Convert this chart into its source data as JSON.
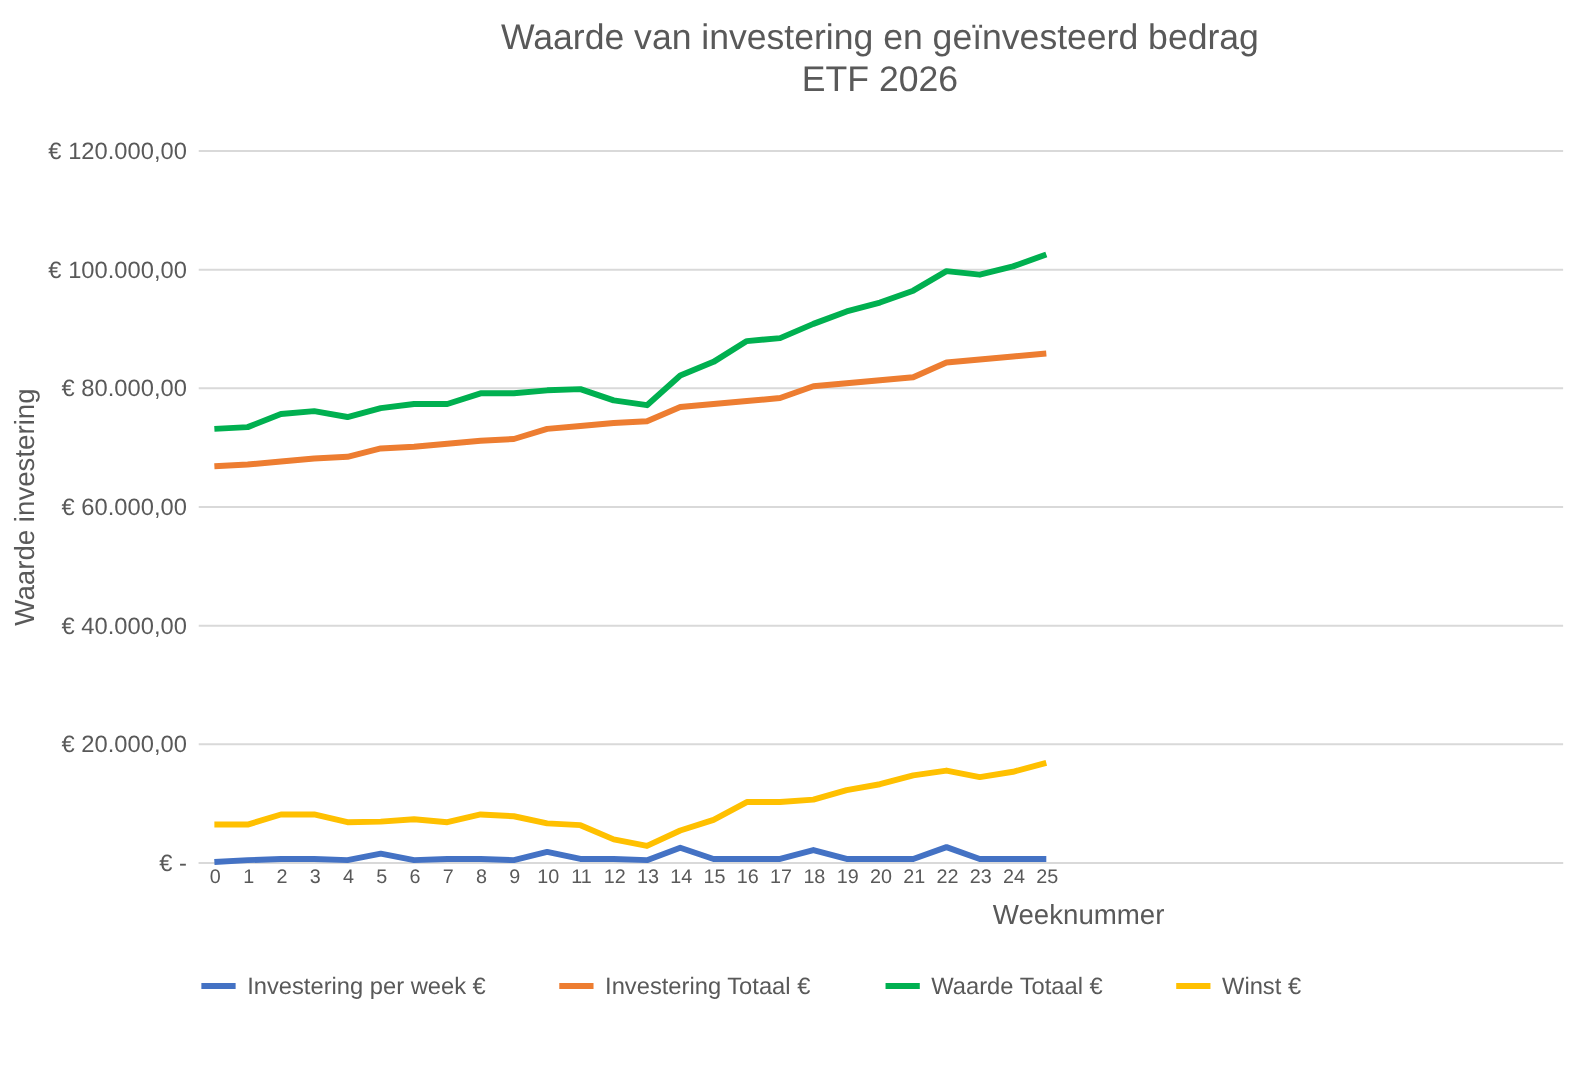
{
  "chart_data": {
    "type": "line",
    "title": "Waarde van investering en geïnvesteerd bedrag",
    "subtitle": "ETF 2026",
    "xlabel": "Weeknummer",
    "ylabel": "Waarde investering",
    "x": [
      0,
      1,
      2,
      3,
      4,
      5,
      6,
      7,
      8,
      9,
      10,
      11,
      12,
      13,
      14,
      15,
      16,
      17,
      18,
      19,
      20,
      21,
      22,
      23,
      24,
      25
    ],
    "xlim": [
      -0.5,
      40.5
    ],
    "xticks": [
      0,
      1,
      2,
      3,
      4,
      5,
      6,
      7,
      8,
      9,
      10,
      11,
      12,
      13,
      14,
      15,
      16,
      17,
      18,
      19,
      20,
      21,
      22,
      23,
      24,
      25
    ],
    "series": [
      {
        "name": "Investering per week €",
        "color": "#4472c4",
        "values": [
          0,
          300,
          500,
          500,
          300,
          1400,
          300,
          500,
          500,
          300,
          1700,
          500,
          500,
          300,
          2400,
          500,
          500,
          500,
          2000,
          500,
          500,
          500,
          2500,
          500,
          500,
          500
        ]
      },
      {
        "name": "Investering Totaal €",
        "color": "#ed7d31",
        "values": [
          66700,
          67000,
          67500,
          68000,
          68300,
          69700,
          70000,
          70500,
          71000,
          71300,
          73000,
          73500,
          74000,
          74300,
          76700,
          77200,
          77700,
          78200,
          80200,
          80700,
          81200,
          81700,
          84200,
          84700,
          85200,
          85700
        ]
      },
      {
        "name": "Waarde Totaal €",
        "color": "#00b050",
        "values": [
          73000,
          73300,
          75500,
          76000,
          75000,
          76500,
          77200,
          77200,
          79000,
          79000,
          79500,
          79700,
          77800,
          77000,
          82000,
          84300,
          87800,
          88300,
          90700,
          92800,
          94300,
          96300,
          99600,
          99000,
          100400,
          102400
        ]
      },
      {
        "name": "Winst €",
        "color": "#ffc000",
        "values": [
          6300,
          6300,
          8000,
          8000,
          6700,
          6800,
          7200,
          6700,
          8000,
          7700,
          6500,
          6200,
          3800,
          2700,
          5300,
          7100,
          10100,
          10100,
          10500,
          12100,
          13100,
          14600,
          15400,
          14300,
          15200,
          16700
        ]
      }
    ],
    "ylim": [
      0,
      120000
    ],
    "yticks": [
      {
        "value": 0,
        "label": "€ -"
      },
      {
        "value": 20000,
        "label": "€ 20.000,00"
      },
      {
        "value": 40000,
        "label": "€ 40.000,00"
      },
      {
        "value": 60000,
        "label": "€ 60.000,00"
      },
      {
        "value": 80000,
        "label": "€ 80.000,00"
      },
      {
        "value": 100000,
        "label": "€ 100.000,00"
      },
      {
        "value": 120000,
        "label": "€ 120.000,00"
      }
    ],
    "grid": "y",
    "legend": "bottom",
    "marker": "none",
    "line_style": "solid"
  }
}
